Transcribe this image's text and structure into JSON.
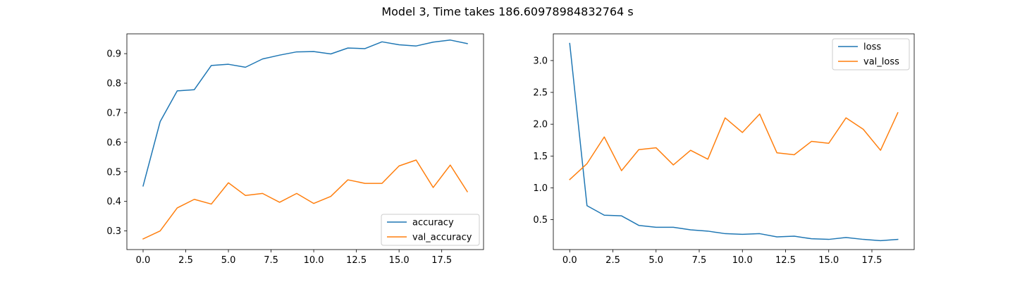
{
  "figure": {
    "title": "Model 3, Time takes 186.60978984832764 s"
  },
  "chart_data": [
    {
      "type": "line",
      "title": "",
      "xlabel": "",
      "ylabel": "",
      "x": [
        0,
        1,
        2,
        3,
        4,
        5,
        6,
        7,
        8,
        9,
        10,
        11,
        12,
        13,
        14,
        15,
        16,
        17,
        18,
        19
      ],
      "xlim": [
        -0.95,
        19.95
      ],
      "ylim": [
        0.237,
        0.967
      ],
      "xticks": [
        0.0,
        2.5,
        5.0,
        7.5,
        10.0,
        12.5,
        15.0,
        17.5
      ],
      "xtick_labels": [
        "0.0",
        "2.5",
        "5.0",
        "7.5",
        "10.0",
        "12.5",
        "15.0",
        "17.5"
      ],
      "yticks": [
        0.3,
        0.4,
        0.5,
        0.6,
        0.7,
        0.8,
        0.9
      ],
      "ytick_labels": [
        "0.3",
        "0.4",
        "0.5",
        "0.6",
        "0.7",
        "0.8",
        "0.9"
      ],
      "grid": false,
      "legend_position": "lower-right",
      "series": [
        {
          "name": "accuracy",
          "color": "#1f77b4",
          "values": [
            0.452,
            0.67,
            0.774,
            0.778,
            0.86,
            0.864,
            0.854,
            0.882,
            0.895,
            0.906,
            0.907,
            0.899,
            0.919,
            0.917,
            0.94,
            0.93,
            0.926,
            0.939,
            0.946,
            0.934
          ]
        },
        {
          "name": "val_accuracy",
          "color": "#ff7f0e",
          "values": [
            0.273,
            0.3,
            0.378,
            0.407,
            0.391,
            0.463,
            0.42,
            0.427,
            0.397,
            0.427,
            0.393,
            0.417,
            0.473,
            0.461,
            0.461,
            0.52,
            0.54,
            0.447,
            0.523,
            0.433
          ]
        }
      ]
    },
    {
      "type": "line",
      "title": "",
      "xlabel": "",
      "ylabel": "",
      "x": [
        0,
        1,
        2,
        3,
        4,
        5,
        6,
        7,
        8,
        9,
        10,
        11,
        12,
        13,
        14,
        15,
        16,
        17,
        18,
        19
      ],
      "xlim": [
        -0.95,
        19.95
      ],
      "ylim": [
        0.03,
        3.42
      ],
      "xticks": [
        0.0,
        2.5,
        5.0,
        7.5,
        10.0,
        12.5,
        15.0,
        17.5
      ],
      "xtick_labels": [
        "0.0",
        "2.5",
        "5.0",
        "7.5",
        "10.0",
        "12.5",
        "15.0",
        "17.5"
      ],
      "yticks": [
        0.5,
        1.0,
        1.5,
        2.0,
        2.5,
        3.0
      ],
      "ytick_labels": [
        "0.5",
        "1.0",
        "1.5",
        "2.0",
        "2.5",
        "3.0"
      ],
      "grid": false,
      "legend_position": "upper-right",
      "series": [
        {
          "name": "loss",
          "color": "#1f77b4",
          "values": [
            3.27,
            0.72,
            0.57,
            0.56,
            0.41,
            0.38,
            0.38,
            0.34,
            0.32,
            0.28,
            0.27,
            0.28,
            0.23,
            0.24,
            0.2,
            0.19,
            0.22,
            0.19,
            0.17,
            0.19
          ]
        },
        {
          "name": "val_loss",
          "color": "#ff7f0e",
          "values": [
            1.13,
            1.38,
            1.8,
            1.27,
            1.6,
            1.63,
            1.36,
            1.59,
            1.45,
            2.1,
            1.87,
            2.16,
            1.55,
            1.52,
            1.73,
            1.7,
            2.1,
            1.92,
            1.59,
            2.18
          ]
        }
      ]
    }
  ]
}
